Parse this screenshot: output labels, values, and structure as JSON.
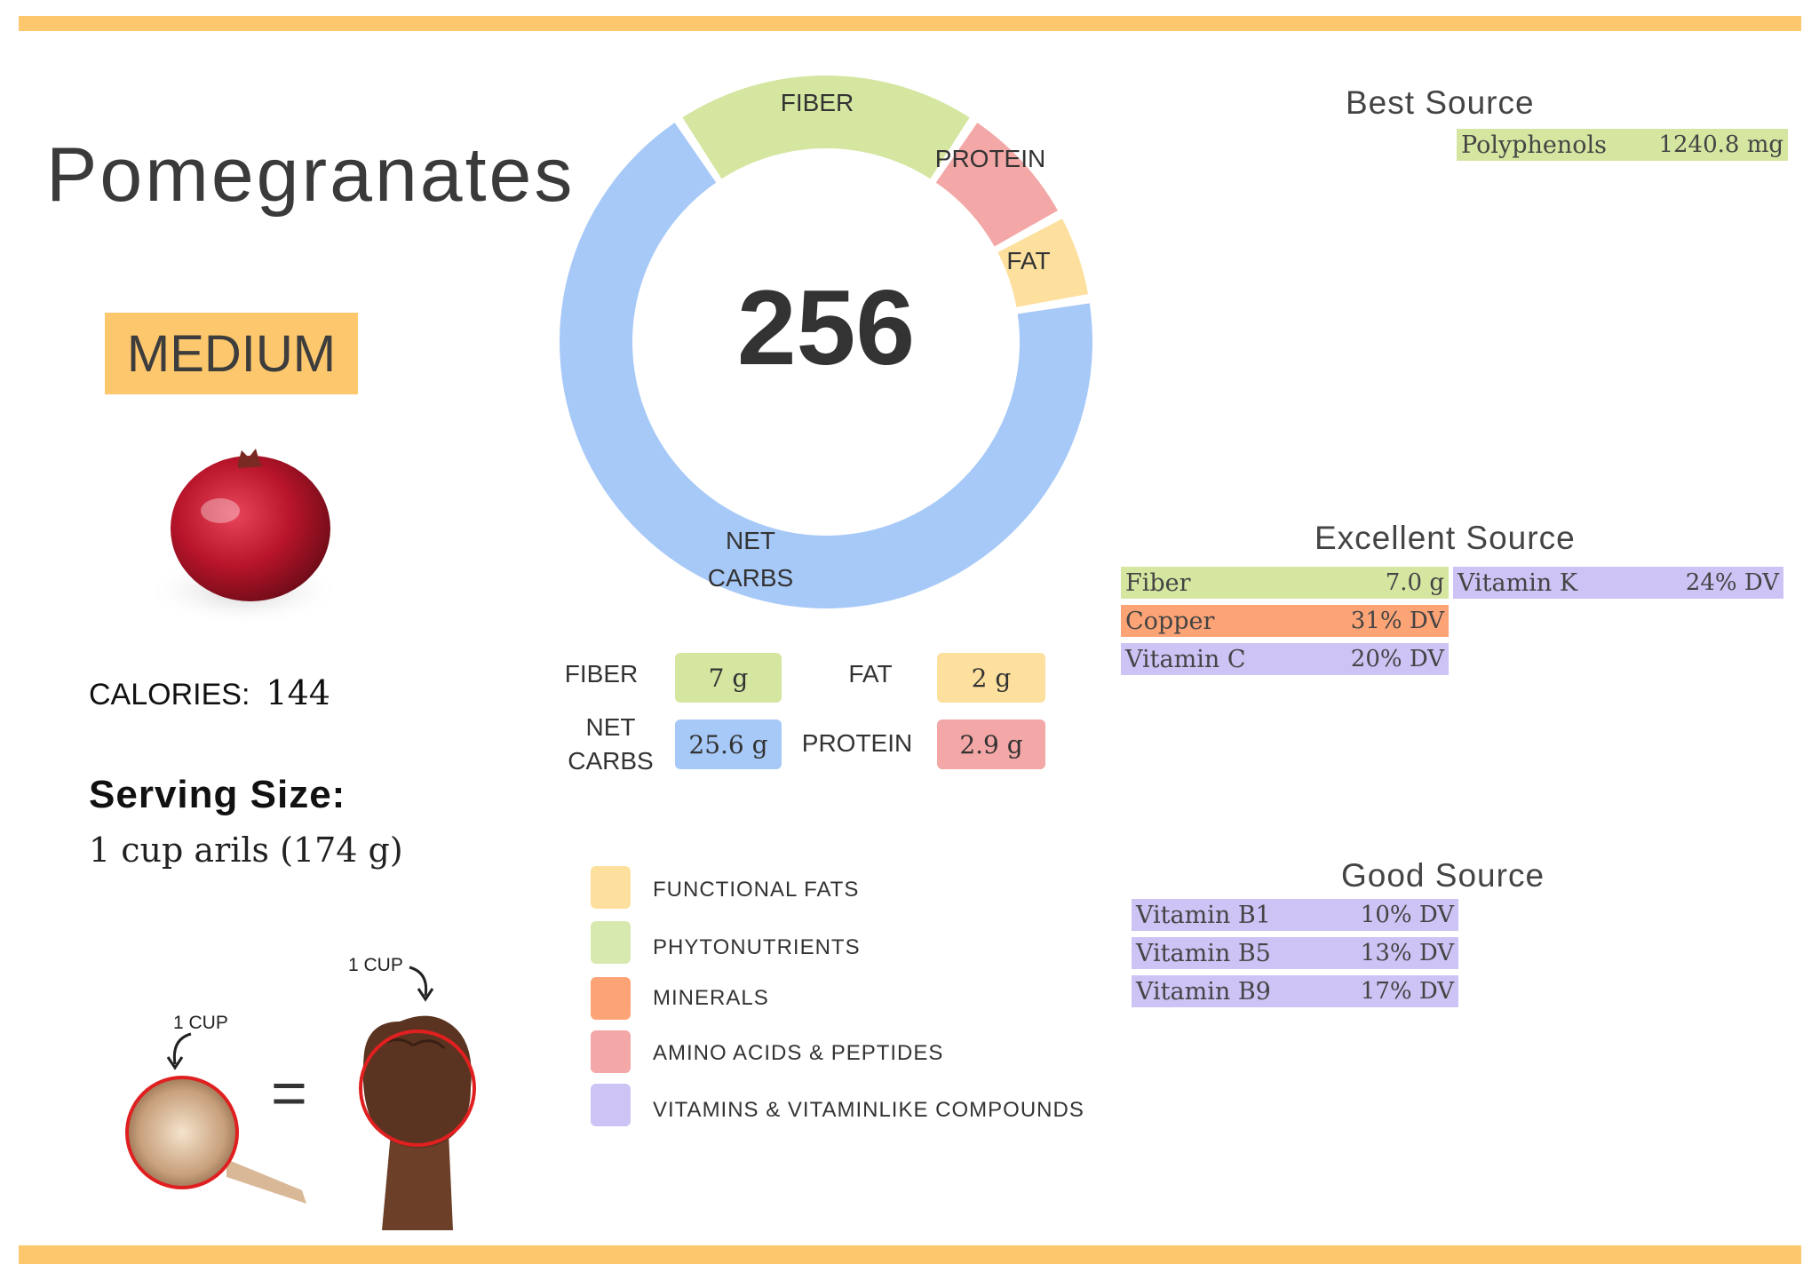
{
  "food": {
    "title": "Pomegranates",
    "glycemic_badge": "MEDIUM",
    "calories_label": "CALORIES:",
    "calories_value": "144",
    "serving_label": "Serving Size:",
    "serving_value": "1 cup arils (174 g)"
  },
  "donut": {
    "center_value": "256",
    "segments": [
      {
        "label": "FIBER",
        "value": 7,
        "color": "#d5e6a1"
      },
      {
        "label": "PROTEIN",
        "value": 2.9,
        "color": "#f3a7a6"
      },
      {
        "label": "FAT",
        "value": 2,
        "color": "#fde09e"
      },
      {
        "label": "NET CARBS",
        "value": 25.6,
        "color": "#a7c9f8"
      }
    ]
  },
  "macros": {
    "fiber_label": "FIBER",
    "fiber_value": "7 g",
    "fat_label": "FAT",
    "fat_value": "2 g",
    "net_label_1": "NET",
    "net_label_2": "CARBS",
    "net_value": "25.6 g",
    "protein_label": "PROTEIN",
    "protein_value": "2.9 g"
  },
  "legend": [
    {
      "label": "FUNCTIONAL  FATS",
      "color": "#fde09e"
    },
    {
      "label": "PHYTONUTRIENTS",
      "color": "#d8e9b0"
    },
    {
      "label": "MINERALS",
      "color": "#fda476"
    },
    {
      "label": "AMINO ACIDS & PEPTIDES",
      "color": "#f3a7a6"
    },
    {
      "label": "VITAMINS & VITAMINLIKE COMPOUNDS",
      "color": "#cdc3f5"
    }
  ],
  "best_source": {
    "title": "Best Source",
    "items": [
      {
        "name": "Polyphenols",
        "value": "1240.8 mg"
      }
    ]
  },
  "excellent_source": {
    "title": "Excellent Source",
    "items": [
      {
        "name": "Fiber",
        "value": "7.0 g"
      },
      {
        "name": "Copper",
        "value": "31% DV"
      },
      {
        "name": "Vitamin C",
        "value": "20% DV"
      },
      {
        "name": "Vitamin K",
        "value": "24% DV"
      }
    ]
  },
  "good_source": {
    "title": "Good Source",
    "items": [
      {
        "name": "Vitamin B1",
        "value": "10% DV"
      },
      {
        "name": "Vitamin B5",
        "value": "13% DV"
      },
      {
        "name": "Vitamin B9",
        "value": "17% DV"
      }
    ]
  },
  "illustration": {
    "cup_label": "1 CUP",
    "fist_label": "1 CUP",
    "equals": "="
  }
}
